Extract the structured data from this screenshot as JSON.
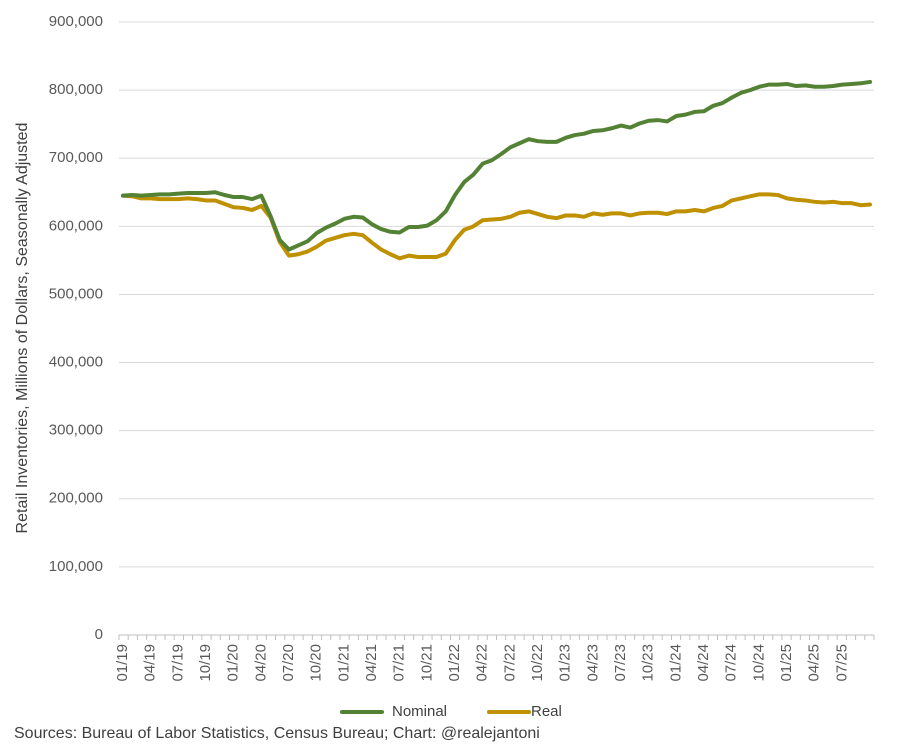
{
  "chart_data": {
    "type": "line",
    "title": "",
    "xlabel": "",
    "ylabel": "Retail Inventories, Millions of Dollars, Seasonally Adjusted",
    "ylim": [
      0,
      900000
    ],
    "yticks": [
      0,
      100000,
      200000,
      300000,
      400000,
      500000,
      600000,
      700000,
      800000,
      900000
    ],
    "ytick_labels": [
      "0",
      "100,000",
      "200,000",
      "300,000",
      "400,000",
      "500,000",
      "600,000",
      "700,000",
      "800,000",
      "900,000"
    ],
    "xtick_labels": [
      "01/19",
      "04/19",
      "07/19",
      "10/19",
      "01/20",
      "04/20",
      "07/20",
      "10/20",
      "01/21",
      "04/21",
      "07/21",
      "10/21",
      "01/22",
      "04/22",
      "07/22",
      "10/22",
      "01/23",
      "04/23",
      "07/23",
      "10/23",
      "01/24",
      "04/24",
      "07/24",
      "10/24",
      "01/25",
      "04/25",
      "07/25"
    ],
    "grid": true,
    "legend": "bottom",
    "series": [
      {
        "name": "Nominal",
        "color": "#548235",
        "values": [
          645000,
          646000,
          645000,
          646000,
          647000,
          647000,
          648000,
          649000,
          649000,
          649000,
          650000,
          646000,
          643000,
          643000,
          640000,
          645000,
          615000,
          580000,
          566000,
          572000,
          578000,
          590000,
          598000,
          604000,
          611000,
          614000,
          613000,
          603000,
          596000,
          592000,
          591000,
          599000,
          599000,
          601000,
          609000,
          622000,
          646000,
          665000,
          676000,
          692000,
          697000,
          706000,
          716000,
          722000,
          728000,
          725000,
          724000,
          724000,
          730000,
          734000,
          736000,
          740000,
          741000,
          744000,
          748000,
          745000,
          751000,
          755000,
          756000,
          754000,
          762000,
          764000,
          768000,
          769000,
          777000,
          781000,
          789000,
          796000,
          800000,
          805000,
          808000,
          808000,
          809000,
          806000,
          807000,
          805000,
          805000,
          806000,
          808000,
          809000,
          810000,
          812000
        ]
      },
      {
        "name": "Real",
        "color": "#BF9000",
        "values": [
          645000,
          644000,
          641000,
          641000,
          640000,
          640000,
          640000,
          641000,
          640000,
          638000,
          638000,
          633000,
          628000,
          627000,
          624000,
          630000,
          613000,
          577000,
          557000,
          559000,
          563000,
          570000,
          579000,
          583000,
          587000,
          589000,
          587000,
          576000,
          566000,
          559000,
          553000,
          557000,
          555000,
          555000,
          555000,
          560000,
          580000,
          595000,
          600000,
          609000,
          610000,
          611000,
          614000,
          620000,
          622000,
          618000,
          614000,
          612000,
          616000,
          616000,
          614000,
          619000,
          617000,
          619000,
          619000,
          616000,
          619000,
          620000,
          620000,
          618000,
          622000,
          622000,
          624000,
          622000,
          627000,
          630000,
          638000,
          641000,
          644000,
          647000,
          647000,
          646000,
          641000,
          639000,
          638000,
          636000,
          635000,
          636000,
          634000,
          634000,
          631000,
          632000
        ]
      }
    ]
  },
  "footer": {
    "source": "Sources: Bureau of Labor Statistics, Census Bureau; Chart: @realejantoni"
  }
}
